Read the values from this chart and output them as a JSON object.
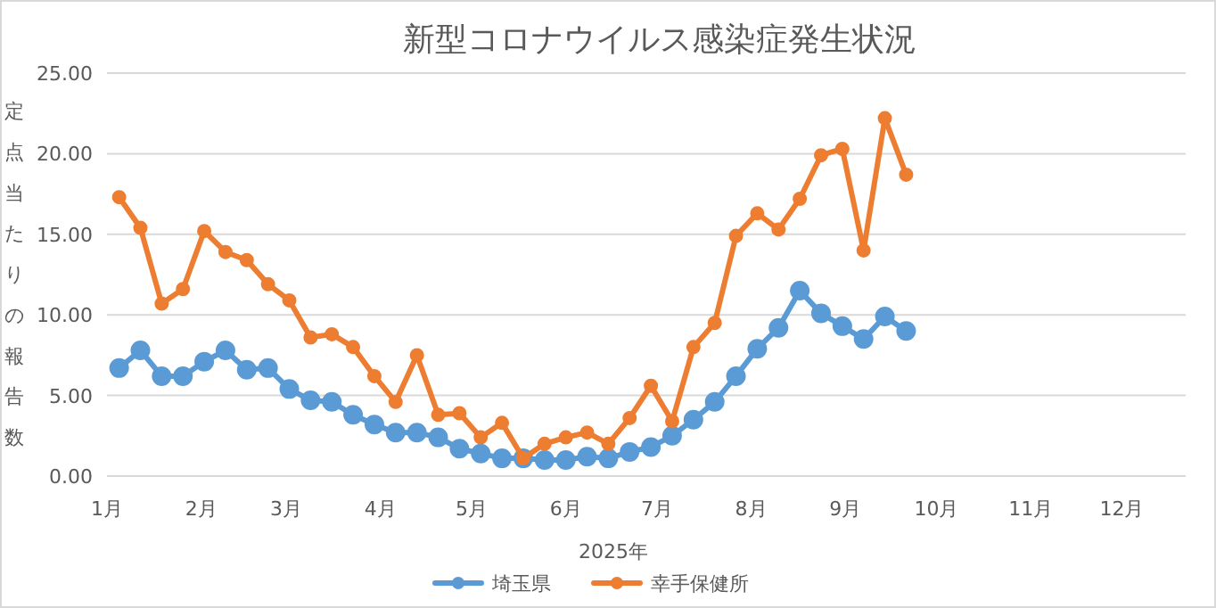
{
  "chart_data": {
    "type": "line",
    "title": "新型コロナウイルス感染症発生状況",
    "xlabel": "2025年",
    "ylabel": "定点当たりの報告数",
    "x": [
      "2025-01-05",
      "2025-01-12",
      "2025-01-19",
      "2025-01-26",
      "2025-02-02",
      "2025-02-09",
      "2025-02-16",
      "2025-02-23",
      "2025-03-02",
      "2025-03-09",
      "2025-03-16",
      "2025-03-23",
      "2025-03-30",
      "2025-04-06",
      "2025-04-13",
      "2025-04-20",
      "2025-04-27",
      "2025-05-04",
      "2025-05-11",
      "2025-05-18",
      "2025-05-25",
      "2025-06-01",
      "2025-06-08",
      "2025-06-15",
      "2025-06-22",
      "2025-06-29",
      "2025-07-06",
      "2025-07-13",
      "2025-07-20",
      "2025-07-27",
      "2025-08-03",
      "2025-08-10",
      "2025-08-17",
      "2025-08-24",
      "2025-08-31",
      "2025-09-07",
      "2025-09-14",
      "2025-09-21"
    ],
    "series": [
      {
        "name": "埼玉県",
        "color": "#5b9bd5",
        "values": [
          6.7,
          7.8,
          6.2,
          6.2,
          7.1,
          7.8,
          6.6,
          6.7,
          5.4,
          4.7,
          4.6,
          3.8,
          3.2,
          2.7,
          2.7,
          2.4,
          1.7,
          1.4,
          1.1,
          1.1,
          1.0,
          1.0,
          1.2,
          1.1,
          1.5,
          1.8,
          2.5,
          3.5,
          4.6,
          6.2,
          7.9,
          9.2,
          11.5,
          10.1,
          9.3,
          8.5,
          9.9,
          9.0
        ]
      },
      {
        "name": "幸手保健所",
        "color": "#ed7d31",
        "values": [
          17.3,
          15.4,
          10.7,
          11.6,
          15.2,
          13.9,
          13.4,
          11.9,
          10.9,
          8.6,
          8.8,
          8.0,
          6.2,
          4.6,
          7.5,
          3.8,
          3.9,
          2.4,
          3.3,
          1.1,
          2.0,
          2.4,
          2.7,
          2.0,
          3.6,
          5.6,
          3.4,
          8.0,
          9.5,
          14.9,
          16.3,
          15.3,
          17.2,
          19.9,
          20.3,
          14.0,
          22.2,
          18.7
        ]
      }
    ],
    "xlim": [
      "2025-01-01",
      "2025-12-22"
    ],
    "xticks": [
      {
        "value": "2025-01-01",
        "label": "1月"
      },
      {
        "value": "2025-02-01",
        "label": "2月"
      },
      {
        "value": "2025-03-01",
        "label": "3月"
      },
      {
        "value": "2025-04-01",
        "label": "4月"
      },
      {
        "value": "2025-05-01",
        "label": "5月"
      },
      {
        "value": "2025-06-01",
        "label": "6月"
      },
      {
        "value": "2025-07-01",
        "label": "7月"
      },
      {
        "value": "2025-08-01",
        "label": "8月"
      },
      {
        "value": "2025-09-01",
        "label": "9月"
      },
      {
        "value": "2025-10-01",
        "label": "10月"
      },
      {
        "value": "2025-11-01",
        "label": "11月"
      },
      {
        "value": "2025-12-01",
        "label": "12月"
      }
    ],
    "ylim": [
      0,
      25
    ],
    "yticks": [
      {
        "value": 0,
        "label": "0.00"
      },
      {
        "value": 5,
        "label": "5.00"
      },
      {
        "value": 10,
        "label": "10.00"
      },
      {
        "value": 15,
        "label": "15.00"
      },
      {
        "value": 20,
        "label": "20.00"
      },
      {
        "value": 25,
        "label": "25.00"
      }
    ],
    "grid": "y",
    "legend": "bottom",
    "marker": "circle",
    "line_style": "solid"
  }
}
